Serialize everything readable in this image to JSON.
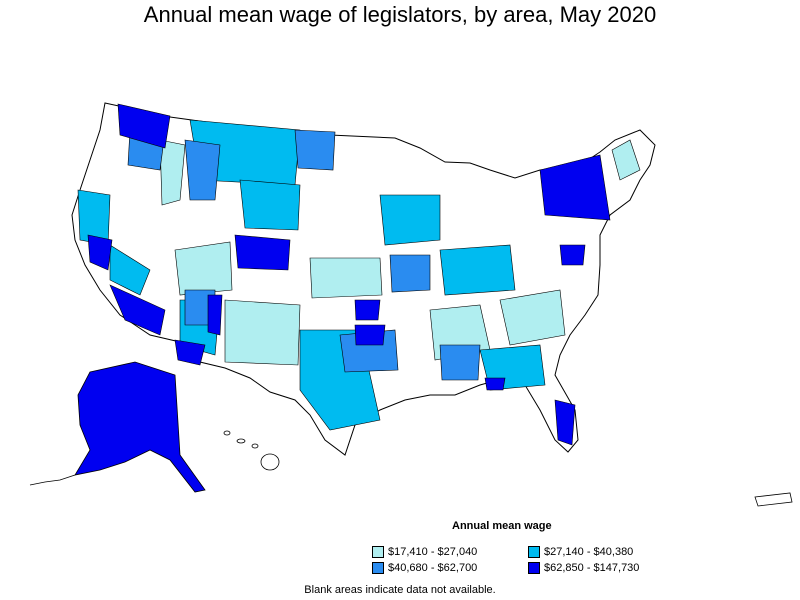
{
  "title": "Annual mean wage of legislators, by area, May 2020",
  "legend": {
    "title": "Annual mean wage",
    "items": [
      {
        "label": "$17,410 - $27,040",
        "color": "#b0eef0"
      },
      {
        "label": "$27,140 - $40,380",
        "color": "#00bbf0"
      },
      {
        "label": "$40,680 - $62,700",
        "color": "#2a8cf0"
      },
      {
        "label": "$62,850 - $147,730",
        "color": "#0000f0"
      }
    ]
  },
  "footnote": "Blank areas indicate data not available.",
  "colors": {
    "no_data": "#ffffff",
    "border": "#000000"
  }
}
